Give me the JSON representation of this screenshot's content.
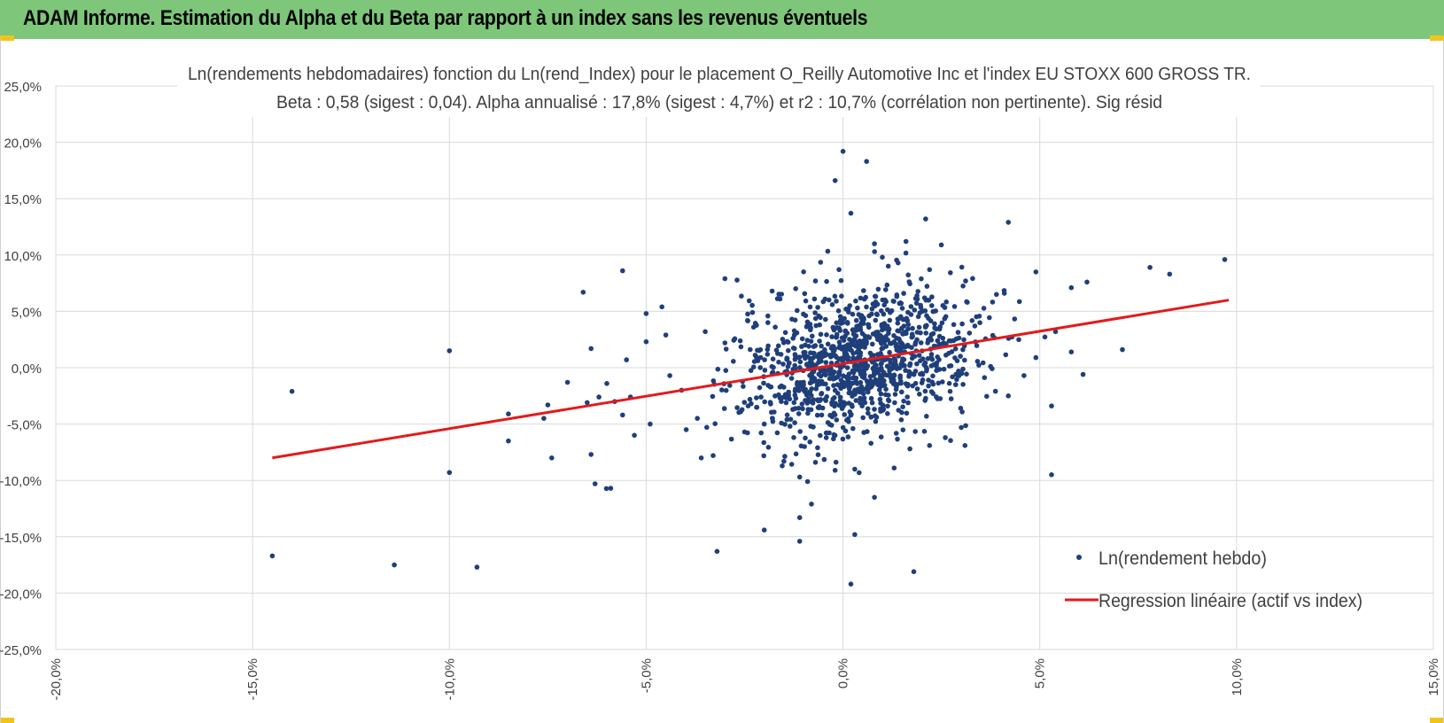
{
  "header": {
    "title": "ADAM Informe. Estimation du Alpha et du Beta par rapport à un index sans les revenus éventuels"
  },
  "colors": {
    "banner": "#7dc67a",
    "points": "#1f3f7a",
    "regression": "#e31a1c",
    "grid": "#d9d9d9"
  },
  "chart_data": {
    "type": "scatter",
    "title": "Ln(rendements hebdomadaires) fonction du Ln(rend_Index) pour le placement O_Reilly Automotive Inc et l'index EU STOXX 600 GROSS TR.",
    "subtitle": "Beta : 0,58 (sigest : 0,04). Alpha annualisé : 17,8% (sigest : 4,7%) et r2 : 10,7% (corrélation non pertinente). Sig résid",
    "xlabel": "",
    "ylabel": "",
    "xlim": [
      -20,
      15
    ],
    "ylim": [
      -25,
      25
    ],
    "x_ticks": [
      "-20,0%",
      "-15,0%",
      "-10,0%",
      "-5,0%",
      "0,0%",
      "5,0%",
      "10,0%",
      "15,0%"
    ],
    "y_ticks": [
      "25,0%",
      "20,0%",
      "15,0%",
      "10,0%",
      "5,0%",
      "0,0%",
      "-5,0%",
      "-10,0%",
      "-15,0%",
      "-20,0%",
      "-25,0%"
    ],
    "grid": true,
    "legend_position": "bottom-right",
    "series": [
      {
        "name": "Ln(rendement hebdo)",
        "kind": "scatter",
        "points": [
          [
            -14.5,
            -16.7
          ],
          [
            -14.0,
            -2.1
          ],
          [
            -11.4,
            -17.5
          ],
          [
            -10.0,
            1.5
          ],
          [
            -10.0,
            -9.3
          ],
          [
            -9.3,
            -17.7
          ],
          [
            -8.5,
            -4.1
          ],
          [
            -8.5,
            -6.5
          ],
          [
            -7.6,
            -4.5
          ],
          [
            -7.5,
            -3.3
          ],
          [
            -7.4,
            -8.0
          ],
          [
            -7.0,
            -1.3
          ],
          [
            -6.6,
            6.7
          ],
          [
            -6.5,
            -3.1
          ],
          [
            -6.4,
            1.7
          ],
          [
            -6.3,
            -10.3
          ],
          [
            -6.4,
            -7.7
          ],
          [
            -6.2,
            -2.6
          ],
          [
            -6.0,
            -1.4
          ],
          [
            -5.9,
            -10.7
          ],
          [
            -5.8,
            -3.0
          ],
          [
            -5.6,
            8.6
          ],
          [
            -5.6,
            -4.2
          ],
          [
            -5.5,
            0.7
          ],
          [
            -5.4,
            -2.6
          ],
          [
            -5.3,
            -6.0
          ],
          [
            -5.0,
            4.8
          ],
          [
            -5.0,
            2.3
          ],
          [
            -4.9,
            -5.0
          ],
          [
            -4.6,
            5.4
          ],
          [
            -4.5,
            2.9
          ],
          [
            -4.4,
            -0.7
          ],
          [
            -3.6,
            -8.0
          ],
          [
            -3.3,
            -7.8
          ],
          [
            -3.2,
            -16.3
          ],
          [
            -3.0,
            7.9
          ],
          [
            -2.5,
            -5.7
          ],
          [
            -2.0,
            -14.4
          ],
          [
            -1.8,
            6.8
          ],
          [
            -1.1,
            -15.4
          ],
          [
            -1.1,
            -13.3
          ],
          [
            -0.8,
            -12.1
          ],
          [
            -0.9,
            -10.1
          ],
          [
            -1.1,
            -9.7
          ],
          [
            -0.2,
            16.6
          ],
          [
            0.0,
            19.2
          ],
          [
            0.6,
            18.3
          ],
          [
            0.2,
            13.7
          ],
          [
            0.3,
            -14.8
          ],
          [
            0.2,
            -19.2
          ],
          [
            0.8,
            11.0
          ],
          [
            1.6,
            11.2
          ],
          [
            2.1,
            13.2
          ],
          [
            2.5,
            10.9
          ],
          [
            1.0,
            9.8
          ],
          [
            -0.7,
            -8.4
          ],
          [
            0.8,
            -11.5
          ],
          [
            1.8,
            -18.1
          ],
          [
            1.7,
            -7.2
          ],
          [
            4.2,
            12.9
          ],
          [
            4.9,
            8.5
          ],
          [
            5.3,
            -9.5
          ],
          [
            5.3,
            -3.4
          ],
          [
            5.4,
            3.2
          ],
          [
            5.8,
            7.1
          ],
          [
            5.8,
            1.4
          ],
          [
            6.1,
            -0.6
          ],
          [
            6.2,
            7.6
          ],
          [
            7.1,
            1.6
          ],
          [
            7.8,
            8.9
          ],
          [
            8.3,
            8.3
          ],
          [
            9.7,
            9.6
          ],
          [
            4.2,
            -2.5
          ],
          [
            4.6,
            -0.7
          ],
          [
            4.9,
            0.9
          ],
          [
            3.9,
            6.5
          ],
          [
            4.1,
            6.6
          ],
          [
            3.1,
            -6.9
          ],
          [
            2.6,
            -6.2
          ],
          [
            2.2,
            -6.9
          ],
          [
            1.3,
            -8.9
          ],
          [
            -0.2,
            -9.1
          ],
          [
            0.3,
            -9.0
          ],
          [
            -1.5,
            -8.3
          ],
          [
            -2.0,
            -5.0
          ],
          [
            -2.6,
            -3.9
          ],
          [
            -3.7,
            -4.5
          ],
          [
            -4.1,
            -2.0
          ],
          [
            -3.0,
            2.2
          ],
          [
            -3.5,
            3.2
          ],
          [
            -2.3,
            4.9
          ],
          [
            -1.6,
            6.1
          ],
          [
            -0.7,
            7.7
          ],
          [
            -0.1,
            8.7
          ],
          [
            1.4,
            9.3
          ],
          [
            2.2,
            8.7
          ]
        ]
      },
      {
        "name": "Regression linéaire (actif vs index)",
        "kind": "line",
        "points": [
          [
            -14.5,
            -8.0
          ],
          [
            9.8,
            6.0
          ]
        ]
      }
    ],
    "cloud": {
      "count": 1150,
      "seed": 7,
      "x_mean": 0.4,
      "x_sd": 1.5,
      "y_sd": 3.1,
      "beta": 0.58,
      "alpha": 0.3
    }
  }
}
